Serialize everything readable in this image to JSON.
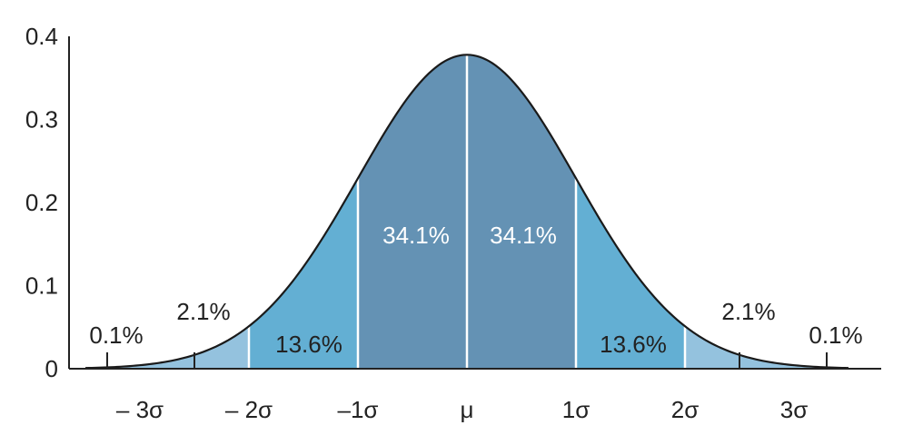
{
  "chart_data": {
    "type": "area",
    "distribution": "normal",
    "x_ticks": [
      "– 3σ",
      "– 2σ",
      "–1σ",
      "μ",
      "1σ",
      "2σ",
      "3σ"
    ],
    "x_tick_values": [
      -3,
      -2,
      -1,
      0,
      1,
      2,
      3
    ],
    "y_ticks": [
      "0",
      "0.1",
      "0.2",
      "0.3",
      "0.4"
    ],
    "y_tick_values": [
      0,
      0.1,
      0.2,
      0.3,
      0.4
    ],
    "xlim": [
      -3.5,
      3.5
    ],
    "ylim": [
      0,
      0.4
    ],
    "regions": [
      {
        "from": -3.5,
        "to": -3,
        "percent": "0.1%",
        "color": "#94c2de"
      },
      {
        "from": -3,
        "to": -2,
        "percent": "2.1%",
        "color": "#94c2de"
      },
      {
        "from": -2,
        "to": -1,
        "percent": "13.6%",
        "color": "#63afd3"
      },
      {
        "from": -1,
        "to": 0,
        "percent": "34.1%",
        "color": "#6492b4"
      },
      {
        "from": 0,
        "to": 1,
        "percent": "34.1%",
        "color": "#6492b4"
      },
      {
        "from": 1,
        "to": 2,
        "percent": "13.6%",
        "color": "#63afd3"
      },
      {
        "from": 2,
        "to": 3,
        "percent": "2.1%",
        "color": "#94c2de"
      },
      {
        "from": 3,
        "to": 3.5,
        "percent": "0.1%",
        "color": "#94c2de"
      }
    ],
    "grid": false,
    "colors": {
      "curve": "#1a1a1a",
      "axis": "#222222",
      "divider": "#ffffff"
    }
  }
}
